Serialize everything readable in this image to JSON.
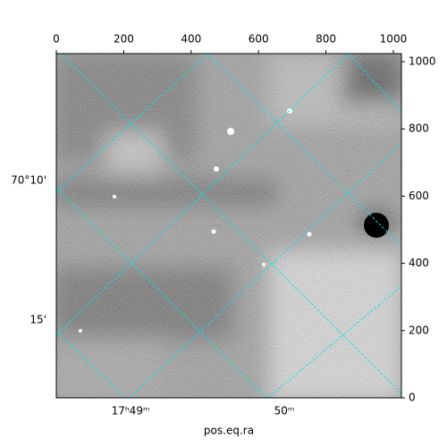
{
  "chart_data": {
    "type": "image",
    "xlabel": "pos.eq.ra",
    "xlim": [
      0,
      1024
    ],
    "ylim": [
      0,
      1024
    ],
    "xticks": [
      0,
      200,
      400,
      600,
      800,
      1000
    ],
    "yticks": [
      0,
      200,
      400,
      600,
      800,
      1000
    ],
    "bottom_labels": [
      "17ʰ49ᵐ",
      "50ᵐ"
    ],
    "left_labels": [
      "70°10'",
      "15'"
    ],
    "grid_color": "#00e5e5"
  }
}
